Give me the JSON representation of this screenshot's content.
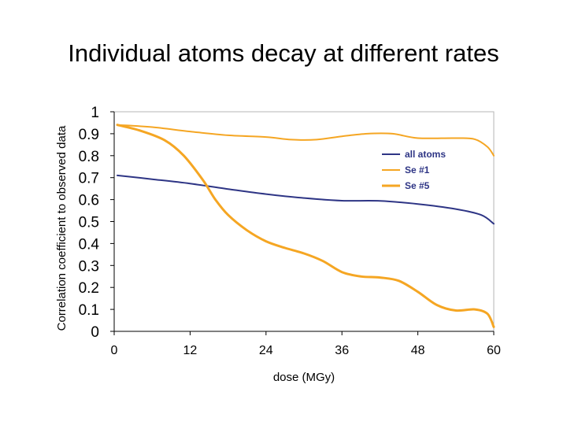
{
  "chart_data": {
    "type": "line",
    "title": "Individual atoms decay at different rates",
    "xlabel": "dose (MGy)",
    "ylabel": "Correlation coefficient to observed data",
    "xlim": [
      0,
      60
    ],
    "ylim": [
      0,
      1
    ],
    "xticks": [
      "0",
      "12",
      "24",
      "36",
      "48",
      "60"
    ],
    "yticks": [
      "0",
      "0.1",
      "0.2",
      "0.3",
      "0.4",
      "0.5",
      "0.6",
      "0.7",
      "0.8",
      "0.9",
      "1"
    ],
    "legend_position": "top-right",
    "grid": false,
    "series": [
      {
        "name": "all atoms",
        "color": "#2e3585",
        "line_weight": "thin",
        "x": [
          0.5,
          6,
          12,
          18,
          24,
          30,
          36,
          42,
          48,
          54,
          58,
          60
        ],
        "y": [
          0.71,
          0.693,
          0.673,
          0.648,
          0.625,
          0.607,
          0.595,
          0.594,
          0.58,
          0.557,
          0.53,
          0.49
        ]
      },
      {
        "name": "Se #1",
        "color": "#f5a623",
        "line_weight": "thin",
        "x": [
          0.5,
          6,
          12,
          18,
          24,
          28,
          32,
          36,
          40,
          44,
          48,
          54,
          57,
          59,
          60
        ],
        "y": [
          0.94,
          0.93,
          0.91,
          0.893,
          0.885,
          0.873,
          0.873,
          0.888,
          0.9,
          0.9,
          0.88,
          0.88,
          0.875,
          0.84,
          0.8
        ]
      },
      {
        "name": "Se #5",
        "color": "#f5a623",
        "line_weight": "thick",
        "x": [
          0.5,
          4,
          8,
          11,
          14,
          16,
          18,
          21,
          24,
          27,
          30,
          33,
          36,
          39,
          42,
          45,
          48,
          51,
          54,
          57,
          59,
          60
        ],
        "y": [
          0.94,
          0.915,
          0.87,
          0.8,
          0.69,
          0.6,
          0.53,
          0.46,
          0.41,
          0.38,
          0.355,
          0.32,
          0.27,
          0.25,
          0.245,
          0.23,
          0.18,
          0.12,
          0.095,
          0.1,
          0.08,
          0.02
        ]
      }
    ]
  }
}
